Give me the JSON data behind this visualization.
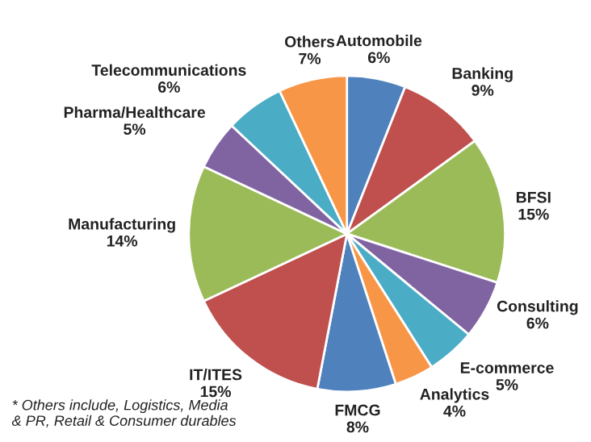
{
  "chart_data": {
    "type": "pie",
    "categories": [
      "Automobile",
      "Banking",
      "BFSI",
      "Consulting",
      "E-commerce",
      "Analytics",
      "FMCG",
      "IT/ITES",
      "Manufacturing",
      "Pharma/Healthcare",
      "Telecommunications",
      "Others"
    ],
    "values": [
      6,
      9,
      15,
      6,
      5,
      4,
      8,
      15,
      14,
      5,
      6,
      7
    ],
    "colors": [
      "#4f81bd",
      "#c0504d",
      "#9bbb59",
      "#8064a2",
      "#4bacc6",
      "#f79646",
      "#4f81bd",
      "#c0504d",
      "#9bbb59",
      "#8064a2",
      "#4bacc6",
      "#f79646"
    ],
    "value_labels": [
      "6%",
      "9%",
      "15%",
      "6%",
      "5%",
      "4%",
      "8%",
      "15%",
      "14%",
      "5%",
      "6%",
      "7%"
    ],
    "annotations": [
      "* Others include, Logistics, Media\n& PR, Retail & Consumer durables"
    ],
    "legend": false
  }
}
